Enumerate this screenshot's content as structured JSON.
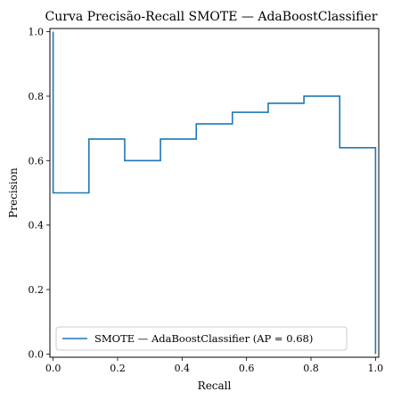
{
  "chart_data": {
    "type": "line",
    "title": "Curva Precisão-Recall SMOTE — AdaBoostClassifier",
    "xlabel": "Recall",
    "ylabel": "Precision",
    "xlim": [
      -0.01,
      1.01
    ],
    "ylim": [
      -0.01,
      1.01
    ],
    "xticks": [
      0.0,
      0.2,
      0.4,
      0.6,
      0.8,
      1.0
    ],
    "xtick_labels": [
      "0.0",
      "0.2",
      "0.4",
      "0.6",
      "0.8",
      "1.0"
    ],
    "yticks": [
      0.0,
      0.2,
      0.4,
      0.6,
      0.8,
      1.0
    ],
    "ytick_labels": [
      "0.0",
      "0.2",
      "0.4",
      "0.6",
      "0.8",
      "1.0"
    ],
    "grid": false,
    "legend_position": "lower-left",
    "series": [
      {
        "name": "SMOTE — AdaBoostClassifier (AP = 0.68)",
        "color": "#1f77b4",
        "step": true,
        "x": [
          0.0,
          0.0,
          0.111,
          0.222,
          0.333,
          0.444,
          0.556,
          0.667,
          0.778,
          0.889,
          1.0,
          1.0
        ],
        "y": [
          1.0,
          0.5,
          0.667,
          0.6,
          0.667,
          0.714,
          0.75,
          0.778,
          0.8,
          0.64,
          0.2,
          0.0
        ]
      }
    ]
  }
}
